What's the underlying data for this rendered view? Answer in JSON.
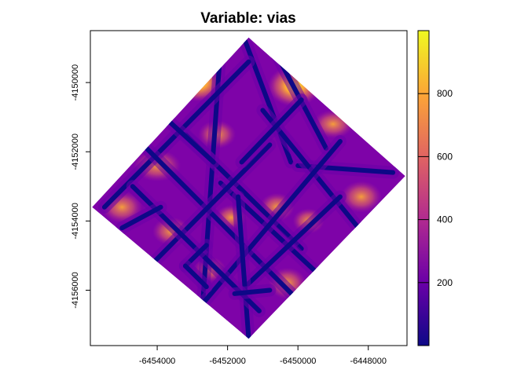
{
  "chart_data": {
    "type": "heatmap",
    "title": "Variable: vias",
    "xlabel": "",
    "ylabel": "",
    "xlim": [
      -6455900,
      -6446900
    ],
    "ylim": [
      -4157600,
      -4148500
    ],
    "x_ticks": [
      {
        "value": -6454000,
        "label": "-6454000"
      },
      {
        "value": -6452000,
        "label": "-6452000"
      },
      {
        "value": -6450000,
        "label": "-6450000"
      },
      {
        "value": -6448000,
        "label": "-6448000"
      }
    ],
    "y_ticks": [
      {
        "value": -4150000,
        "label": "-4150000"
      },
      {
        "value": -4152000,
        "label": "-4152000"
      },
      {
        "value": -4154000,
        "label": "-4154000"
      },
      {
        "value": -4156000,
        "label": "-4156000"
      }
    ],
    "legend": {
      "position": "right",
      "range": [
        0,
        1000
      ],
      "ticks": [
        {
          "value": 200,
          "label": "200"
        },
        {
          "value": 400,
          "label": "400"
        },
        {
          "value": 600,
          "label": "600"
        },
        {
          "value": 800,
          "label": "800"
        }
      ],
      "colors": [
        "#0d0887",
        "#6a00a8",
        "#b12a90",
        "#e16462",
        "#fca636",
        "#f0f921"
      ]
    },
    "region": {
      "top": [
        -6451400,
        -4148700
      ],
      "right": [
        -6446950,
        -4152700
      ],
      "bottom": [
        -6451400,
        -4157400
      ],
      "left": [
        -6455850,
        -4153600
      ]
    },
    "roads": [
      [
        [
          -6452200,
          -4149000
        ],
        [
          -6452700,
          -4156300
        ]
      ],
      [
        [
          -6451500,
          -4148800
        ],
        [
          -6450200,
          -4152300
        ]
      ],
      [
        [
          -6450600,
          -4149200
        ],
        [
          -6449200,
          -4151900
        ]
      ],
      [
        [
          -6453200,
          -4151500
        ],
        [
          -6449900,
          -4154800
        ]
      ],
      [
        [
          -6455500,
          -4153600
        ],
        [
          -6451400,
          -4149400
        ]
      ],
      [
        [
          -6450000,
          -4152400
        ],
        [
          -6447300,
          -4152600
        ]
      ],
      [
        [
          -6451000,
          -4150800
        ],
        [
          -6447400,
          -4155300
        ]
      ],
      [
        [
          -6454400,
          -4151800
        ],
        [
          -6449300,
          -4157000
        ]
      ],
      [
        [
          -6452200,
          -4152900
        ],
        [
          -6448400,
          -4156500
        ]
      ],
      [
        [
          -6454300,
          -4155400
        ],
        [
          -6450800,
          -4151800
        ]
      ],
      [
        [
          -6452800,
          -4156500
        ],
        [
          -6448800,
          -4151700
        ]
      ],
      [
        [
          -6451500,
          -4155900
        ],
        [
          -6448800,
          -4153300
        ]
      ],
      [
        [
          -6451700,
          -4153300
        ],
        [
          -6451400,
          -4157400
        ]
      ],
      [
        [
          -6454700,
          -4153000
        ],
        [
          -6451100,
          -4156600
        ]
      ],
      [
        [
          -6453900,
          -4150900
        ],
        [
          -6452400,
          -4152300
        ]
      ],
      [
        [
          -6449900,
          -4150500
        ],
        [
          -6451600,
          -4152300
        ]
      ],
      [
        [
          -6455000,
          -4154200
        ],
        [
          -6453900,
          -4153600
        ]
      ],
      [
        [
          -6452600,
          -4154700
        ],
        [
          -6453200,
          -4155300
        ]
      ],
      [
        [
          -6453200,
          -4155300
        ],
        [
          -6452600,
          -4155900
        ]
      ],
      [
        [
          -6450800,
          -4156000
        ],
        [
          -6451800,
          -4156100
        ]
      ],
      [
        [
          -6449300,
          -4156800
        ],
        [
          -6448400,
          -4155100
        ]
      ]
    ]
  }
}
